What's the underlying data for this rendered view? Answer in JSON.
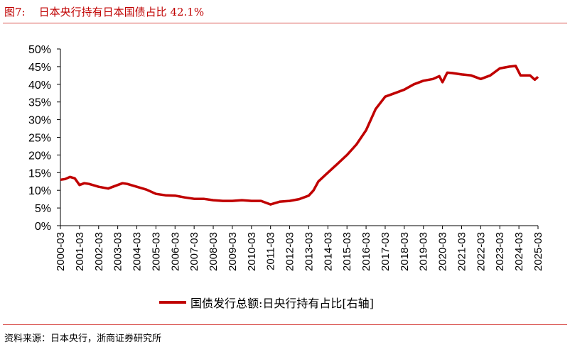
{
  "header": {
    "title": "图7:    日本央行持有日本国债占比 42.1%"
  },
  "footer": {
    "source": "资料来源：日本央行，浙商证券研究所"
  },
  "chart_data": {
    "type": "line",
    "title": "日本央行持有日本国债占比 42.1%",
    "xlabel": "",
    "ylabel": "",
    "ylim": [
      0,
      50
    ],
    "yticks": [
      "0%",
      "5%",
      "10%",
      "15%",
      "20%",
      "25%",
      "30%",
      "35%",
      "40%",
      "45%",
      "50%"
    ],
    "xticks": [
      "2000-03",
      "2001-03",
      "2002-03",
      "2003-03",
      "2004-03",
      "2005-03",
      "2006-03",
      "2007-03",
      "2008-03",
      "2009-03",
      "2010-03",
      "2011-03",
      "2012-03",
      "2013-03",
      "2014-03",
      "2015-03",
      "2016-03",
      "2017-03",
      "2018-03",
      "2019-03",
      "2020-03",
      "2021-03",
      "2022-03",
      "2023-03",
      "2024-03",
      "2025-03"
    ],
    "grid": false,
    "legend_position": "bottom",
    "color": "#c00000",
    "series": [
      {
        "name": "国债发行总额:日央行持有占比[右轴]",
        "x": [
          "2000-03",
          "2000-06",
          "2000-09",
          "2000-12",
          "2001-03",
          "2001-06",
          "2001-09",
          "2002-03",
          "2002-09",
          "2003-03",
          "2003-06",
          "2003-09",
          "2004-03",
          "2004-09",
          "2005-03",
          "2005-09",
          "2006-03",
          "2006-09",
          "2007-03",
          "2007-09",
          "2008-03",
          "2008-09",
          "2009-03",
          "2009-09",
          "2010-03",
          "2010-09",
          "2011-03",
          "2011-09",
          "2012-03",
          "2012-09",
          "2013-03",
          "2013-06",
          "2013-09",
          "2014-03",
          "2014-09",
          "2015-03",
          "2015-09",
          "2016-03",
          "2016-09",
          "2017-03",
          "2017-09",
          "2018-03",
          "2018-09",
          "2019-03",
          "2019-09",
          "2020-01",
          "2020-03",
          "2020-06",
          "2020-09",
          "2021-03",
          "2021-09",
          "2022-03",
          "2022-09",
          "2023-03",
          "2023-09",
          "2024-01",
          "2024-04",
          "2024-07",
          "2024-10",
          "2025-01",
          "2025-03"
        ],
        "values": [
          13.0,
          13.2,
          13.8,
          13.4,
          11.5,
          12.0,
          11.8,
          11.0,
          10.5,
          11.5,
          12.0,
          11.8,
          11.0,
          10.2,
          9.0,
          8.6,
          8.5,
          8.0,
          7.6,
          7.6,
          7.2,
          7.0,
          7.0,
          7.2,
          7.0,
          7.0,
          6.0,
          6.8,
          7.0,
          7.5,
          8.5,
          10.0,
          12.5,
          15.0,
          17.5,
          20.0,
          23.0,
          27.0,
          33.0,
          36.5,
          37.5,
          38.5,
          40.0,
          41.0,
          41.5,
          42.3,
          40.6,
          43.3,
          43.2,
          42.8,
          42.5,
          41.5,
          42.5,
          44.5,
          45.0,
          45.2,
          42.5,
          42.5,
          42.5,
          41.3,
          42.1
        ]
      }
    ]
  }
}
